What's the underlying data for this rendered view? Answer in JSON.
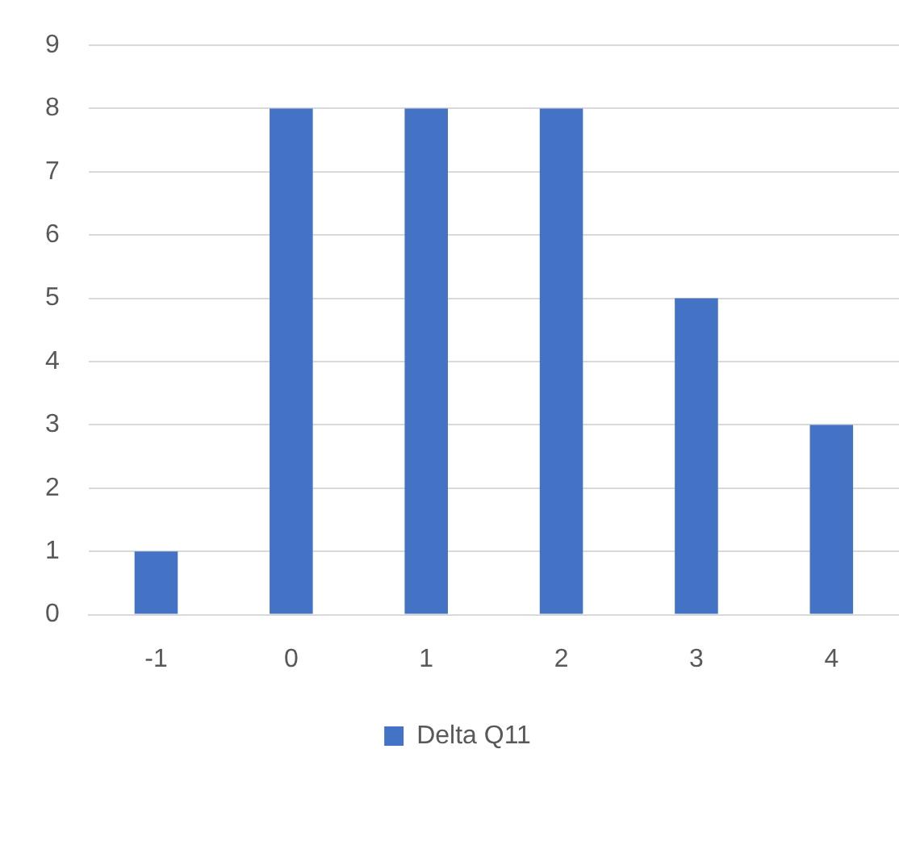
{
  "chart_data": {
    "type": "bar",
    "categories": [
      "-1",
      "0",
      "1",
      "2",
      "3",
      "4"
    ],
    "series": [
      {
        "name": "Delta Q11",
        "color": "#4472c4",
        "values": [
          1,
          8,
          8,
          8,
          5,
          3
        ]
      }
    ],
    "ylim": [
      0,
      9
    ],
    "yticks": [
      0,
      1,
      2,
      3,
      4,
      5,
      6,
      7,
      8,
      9
    ],
    "grid": "y",
    "legend": "bottom"
  }
}
